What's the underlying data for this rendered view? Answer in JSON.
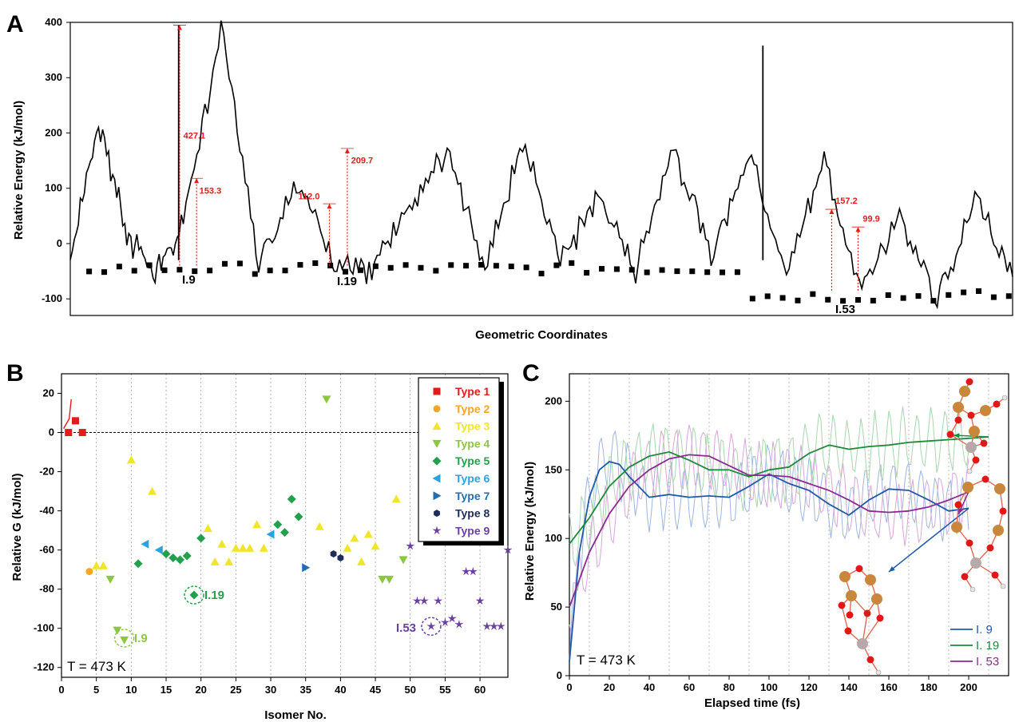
{
  "chart_data": [
    {
      "panel": "A",
      "type": "line",
      "xlabel": "Geometric Coordinates",
      "ylabel": "Relative Energy (kJ/mol)",
      "ylim": [
        -130,
        400
      ],
      "yticks": [
        -100,
        0,
        100,
        200,
        300,
        400
      ],
      "x_ticks_shown": false,
      "series": [
        {
          "x": [
            0,
            3,
            6,
            9,
            12,
            16,
            20,
            24,
            28,
            32,
            36,
            40,
            44,
            48,
            52,
            56,
            60,
            64,
            68,
            72,
            76,
            80,
            84,
            88,
            92,
            96,
            100
          ],
          "values": [
            -15,
            215,
            30,
            -50,
            40,
            395,
            -35,
            118,
            -30,
            -50,
            72,
            172,
            -40,
            195,
            -30,
            90,
            -45,
            185,
            -20,
            175,
            -55,
            160,
            -90,
            60,
            -100,
            95,
            -60
          ]
        }
      ],
      "minima_labels": [
        "I.9",
        "I.19",
        "I.53"
      ],
      "barrier_annotations": [
        "427.1",
        "153.3",
        "112.0",
        "209.7",
        "157.2",
        "99.9"
      ]
    },
    {
      "panel": "B",
      "type": "scatter",
      "xlabel": "Isomer No.",
      "ylabel": "Relative G (kJ/mol)",
      "xlim": [
        0,
        64
      ],
      "ylim": [
        -125,
        30
      ],
      "xticks": [
        0,
        5,
        10,
        15,
        20,
        25,
        30,
        35,
        40,
        45,
        50,
        55,
        60
      ],
      "yticks": [
        -120,
        -100,
        -80,
        -60,
        -40,
        -20,
        0,
        20
      ],
      "grid": "vertical-dotted",
      "legend_position": "top-right",
      "annotation": "T = 473 K",
      "isomer_labels": [
        "I.9",
        "I.19",
        "I.53"
      ],
      "series": [
        {
          "name": "Type 1",
          "color": "#e41a1c",
          "marker": "square",
          "points": [
            [
              1,
              0
            ],
            [
              2,
              6
            ],
            [
              3,
              0
            ]
          ]
        },
        {
          "name": "Type 2",
          "color": "#f5a623",
          "marker": "circle",
          "points": [
            [
              4,
              -71
            ]
          ]
        },
        {
          "name": "Type 3",
          "color": "#f1e52a",
          "marker": "triangle-up",
          "points": [
            [
              5,
              -68
            ],
            [
              6,
              -68
            ],
            [
              10,
              -14
            ],
            [
              13,
              -30
            ],
            [
              21,
              -49
            ],
            [
              22,
              -66
            ],
            [
              23,
              -57
            ],
            [
              24,
              -66
            ],
            [
              25,
              -59
            ],
            [
              26,
              -59
            ],
            [
              27,
              -59
            ],
            [
              28,
              -47
            ],
            [
              29,
              -59
            ],
            [
              37,
              -48
            ],
            [
              41,
              -59
            ],
            [
              42,
              -54
            ],
            [
              43,
              -66
            ],
            [
              44,
              -52
            ],
            [
              45,
              -58
            ],
            [
              48,
              -34
            ]
          ]
        },
        {
          "name": "Type 4",
          "color": "#8dc63f",
          "marker": "triangle-down",
          "points": [
            [
              7,
              -75
            ],
            [
              8,
              -101
            ],
            [
              9,
              -106
            ],
            [
              38,
              17
            ],
            [
              46,
              -75
            ],
            [
              47,
              -75
            ],
            [
              49,
              -65
            ]
          ]
        },
        {
          "name": "Type 5",
          "color": "#22a04b",
          "marker": "diamond",
          "points": [
            [
              11,
              -67
            ],
            [
              15,
              -62
            ],
            [
              16,
              -64
            ],
            [
              17,
              -65
            ],
            [
              18,
              -63
            ],
            [
              19,
              -83
            ],
            [
              20,
              -54
            ],
            [
              31,
              -47
            ],
            [
              32,
              -51
            ],
            [
              33,
              -34
            ],
            [
              34,
              -43
            ]
          ]
        },
        {
          "name": "Type 6",
          "color": "#29a3dd",
          "marker": "triangle-left",
          "points": [
            [
              12,
              -57
            ],
            [
              14,
              -60
            ],
            [
              30,
              -52
            ]
          ]
        },
        {
          "name": "Type 7",
          "color": "#1f6fb5",
          "marker": "triangle-right",
          "points": [
            [
              35,
              -69
            ]
          ]
        },
        {
          "name": "Type 8",
          "color": "#1f2d5c",
          "marker": "hexagon",
          "points": [
            [
              39,
              -62
            ],
            [
              40,
              -64
            ]
          ]
        },
        {
          "name": "Type 9",
          "color": "#6b3fa0",
          "marker": "star",
          "points": [
            [
              50,
              -58
            ],
            [
              51,
              -86
            ],
            [
              52,
              -86
            ],
            [
              53,
              -99
            ],
            [
              54,
              -86
            ],
            [
              55,
              -97
            ],
            [
              56,
              -95
            ],
            [
              57,
              -98
            ],
            [
              58,
              -71
            ],
            [
              59,
              -71
            ],
            [
              60,
              -86
            ],
            [
              61,
              -99
            ],
            [
              62,
              -99
            ],
            [
              63,
              -99
            ],
            [
              64,
              -60
            ]
          ]
        }
      ]
    },
    {
      "panel": "C",
      "type": "line",
      "xlabel": "Elapsed time (fs)",
      "ylabel": "Relative Energy (kJ/mol)",
      "xlim": [
        0,
        220
      ],
      "ylim": [
        0,
        220
      ],
      "xticks": [
        0,
        20,
        40,
        60,
        80,
        100,
        120,
        140,
        160,
        180,
        200
      ],
      "yticks": [
        0,
        50,
        100,
        150,
        200
      ],
      "grid": "vertical-dotted",
      "legend_position": "bottom-right",
      "annotation": "T = 473 K",
      "series": [
        {
          "name": "I. 9",
          "color": "#1f5aa8",
          "x": [
            0,
            5,
            10,
            15,
            20,
            25,
            30,
            40,
            50,
            60,
            70,
            80,
            90,
            100,
            110,
            120,
            130,
            140,
            150,
            160,
            170,
            180,
            190,
            200
          ],
          "values": [
            10,
            90,
            130,
            150,
            156,
            154,
            145,
            130,
            132,
            130,
            131,
            130,
            138,
            147,
            140,
            135,
            125,
            117,
            128,
            136,
            135,
            128,
            120,
            122
          ]
        },
        {
          "name": "I. 19",
          "color": "#1d8a3c",
          "x": [
            0,
            10,
            20,
            30,
            40,
            50,
            60,
            70,
            80,
            90,
            100,
            110,
            120,
            130,
            140,
            150,
            160,
            170,
            180,
            190,
            200,
            210
          ],
          "values": [
            96,
            115,
            138,
            152,
            160,
            163,
            157,
            150,
            150,
            145,
            150,
            152,
            162,
            168,
            165,
            167,
            168,
            170,
            171,
            172,
            173,
            174
          ]
        },
        {
          "name": "I. 53",
          "color": "#8a2b90",
          "x": [
            0,
            10,
            20,
            30,
            40,
            50,
            60,
            70,
            80,
            90,
            100,
            110,
            120,
            130,
            140,
            150,
            160,
            170,
            180,
            190,
            200
          ],
          "values": [
            50,
            90,
            118,
            138,
            150,
            158,
            161,
            160,
            153,
            146,
            146,
            145,
            140,
            135,
            128,
            120,
            119,
            120,
            123,
            128,
            134
          ]
        }
      ]
    }
  ],
  "panels": {
    "A": {
      "letter": "A"
    },
    "B": {
      "letter": "B",
      "temp": "T = 473 K"
    },
    "C": {
      "letter": "C",
      "temp": "T = 473 K"
    }
  }
}
